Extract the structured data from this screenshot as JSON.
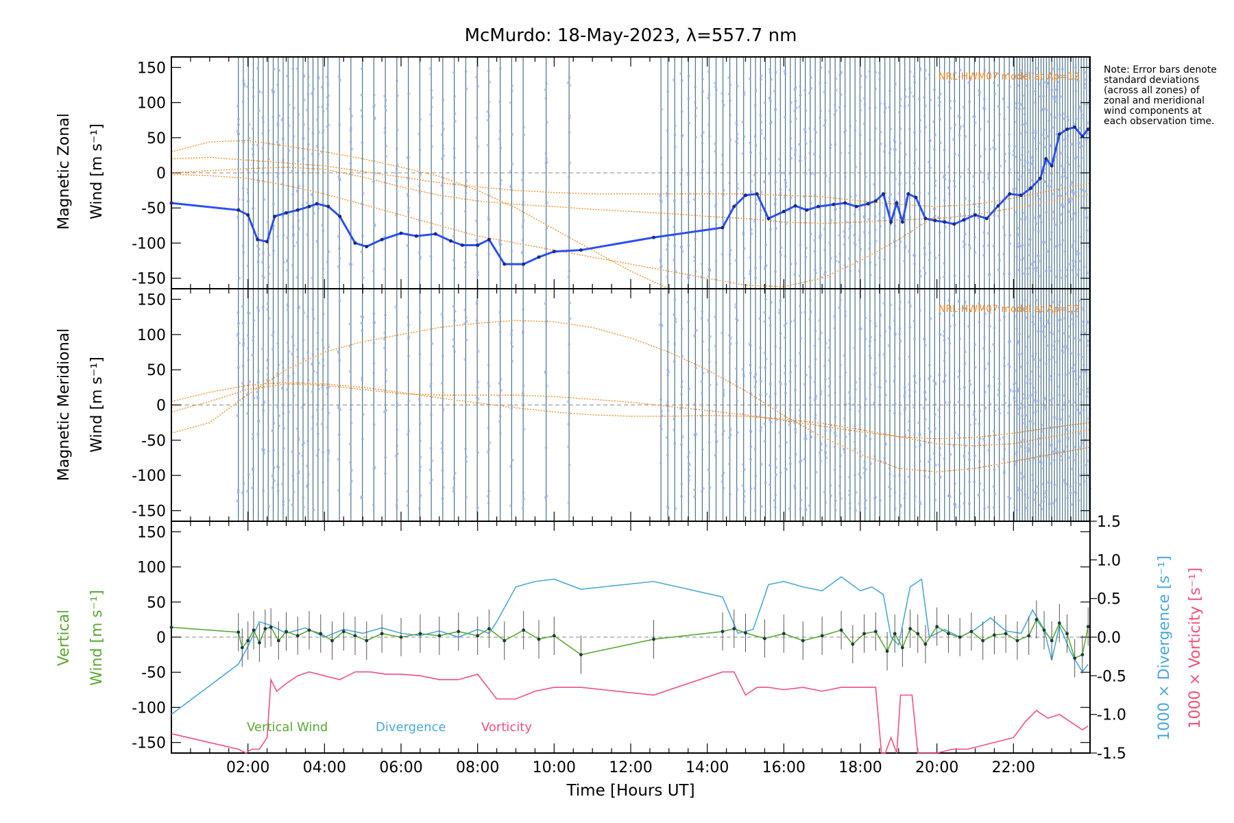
{
  "title": "McMurdo: 18-May-2023, λ=557.7 nm",
  "note": "Note: Error bars denote standard deviations (across all zones) of zonal and meridional wind components at each observation time.",
  "colors": {
    "zonal_line": "#2a4ff0",
    "model": "#f08a24",
    "vertical": "#5aa832",
    "divergence": "#4aa8d8",
    "vorticity": "#f0507a",
    "obs_lines": "#2c5870",
    "zone_points": "#8fa8e8"
  },
  "chart_data": [
    {
      "type": "line",
      "panel": "zonal",
      "ylabel_line1": "Magnetic Zonal",
      "ylabel_line2": "Wind",
      "ylabel_unit": "[m s⁻¹]",
      "ylim": [
        -165,
        165
      ],
      "yticks": [
        -150,
        -100,
        -50,
        0,
        50,
        100,
        150
      ],
      "xlim": [
        0,
        24
      ],
      "model_label": "NRL-HWM07 model at Ap=12",
      "series": [
        {
          "name": "Zonal wind",
          "x": [
            0.0,
            1.75,
            2.0,
            2.25,
            2.5,
            2.7,
            3.0,
            3.3,
            3.6,
            3.8,
            4.1,
            4.4,
            4.8,
            5.1,
            5.5,
            6.0,
            6.4,
            6.9,
            7.3,
            7.6,
            8.0,
            8.3,
            8.7,
            9.2,
            9.6,
            10.0,
            10.7,
            12.6,
            14.4,
            14.7,
            15.0,
            15.3,
            15.6,
            16.0,
            16.3,
            16.6,
            16.9,
            17.3,
            17.6,
            17.9,
            18.2,
            18.4,
            18.6,
            18.8,
            18.95,
            19.1,
            19.25,
            19.45,
            19.7,
            19.95,
            20.2,
            20.45,
            20.7,
            21.0,
            21.3,
            21.6,
            21.9,
            22.2,
            22.45,
            22.7,
            22.85,
            23.0,
            23.2,
            23.4,
            23.6,
            23.8,
            23.95
          ],
          "y": [
            -43,
            -53,
            -60,
            -95,
            -98,
            -62,
            -57,
            -53,
            -48,
            -44,
            -48,
            -62,
            -100,
            -105,
            -95,
            -86,
            -90,
            -87,
            -97,
            -103,
            -103,
            -95,
            -130,
            -130,
            -120,
            -112,
            -110,
            -92,
            -78,
            -48,
            -32,
            -30,
            -65,
            -55,
            -47,
            -53,
            -48,
            -45,
            -43,
            -48,
            -44,
            -40,
            -30,
            -70,
            -43,
            -70,
            -30,
            -35,
            -65,
            -68,
            -70,
            -73,
            -67,
            -60,
            -65,
            -47,
            -30,
            -32,
            -22,
            -8,
            20,
            10,
            55,
            62,
            65,
            52,
            62
          ]
        },
        {
          "name": "NRL-HWM07 model",
          "curves": [
            {
              "x": [
                0,
                1,
                2,
                3,
                4,
                5,
                6,
                7,
                8,
                9,
                10,
                11,
                12,
                13
              ],
              "y": [
                30,
                44,
                46,
                38,
                30,
                20,
                8,
                -5,
                -25,
                -50,
                -80,
                -110,
                -140,
                -165
              ]
            },
            {
              "x": [
                0,
                1,
                2,
                3,
                4,
                5,
                6,
                7,
                8,
                9,
                10,
                11,
                12,
                13,
                14,
                15,
                16,
                17,
                18,
                19,
                20,
                21,
                22,
                23,
                24
              ],
              "y": [
                20,
                22,
                18,
                14,
                10,
                2,
                -6,
                -14,
                -20,
                -25,
                -28,
                -30,
                -30,
                -30,
                -30,
                -30,
                -32,
                -34,
                -40,
                -45,
                -48,
                -45,
                -36,
                -25,
                -15
              ]
            },
            {
              "x": [
                0,
                1,
                2,
                3,
                4,
                5,
                6,
                7,
                8,
                9,
                10,
                11,
                12,
                13,
                14,
                15,
                16,
                17,
                18,
                19,
                20,
                21,
                22,
                23,
                24
              ],
              "y": [
                0,
                3,
                6,
                8,
                5,
                -6,
                -20,
                -32,
                -40,
                -45,
                -48,
                -52,
                -55,
                -58,
                -62,
                -65,
                -70,
                -72,
                -70,
                -67,
                -65,
                -60,
                -50,
                -40,
                -30
              ]
            },
            {
              "x": [
                0,
                1,
                2,
                3,
                4,
                5,
                6,
                7,
                8,
                9,
                10,
                11,
                12,
                13,
                14,
                15,
                16,
                17,
                18,
                19,
                20
              ],
              "y": [
                -2,
                -4,
                -8,
                -18,
                -30,
                -45,
                -60,
                -75,
                -90,
                -100,
                -110,
                -120,
                -130,
                -140,
                -150,
                -160,
                -162,
                -150,
                -125,
                -95,
                -60
              ]
            }
          ]
        }
      ]
    },
    {
      "type": "line",
      "panel": "meridional",
      "ylabel_line1": "Magnetic Meridional",
      "ylabel_line2": "Wind",
      "ylabel_unit": "[m s⁻¹]",
      "ylim": [
        -165,
        165
      ],
      "yticks": [
        -150,
        -100,
        -50,
        0,
        50,
        100,
        150
      ],
      "xlim": [
        0,
        24
      ],
      "model_label": "NRL-HWM07 model at Ap=12",
      "series": [
        {
          "name": "NRL-HWM07 model",
          "curves": [
            {
              "x": [
                0,
                1,
                2,
                3,
                4,
                5,
                6,
                7,
                8,
                9,
                10,
                11,
                12,
                13,
                14,
                15,
                16,
                17,
                18,
                19,
                20,
                21,
                22,
                23,
                24
              ],
              "y": [
                -40,
                -25,
                15,
                50,
                75,
                90,
                100,
                110,
                116,
                120,
                118,
                110,
                95,
                75,
                50,
                20,
                -15,
                -45,
                -70,
                -90,
                -95,
                -90,
                -80,
                -70,
                -60
              ]
            },
            {
              "x": [
                0,
                1,
                2,
                3,
                4,
                5,
                6,
                7,
                8,
                9,
                10,
                11,
                12,
                13,
                14,
                15,
                16,
                17,
                18,
                19,
                20,
                21,
                22,
                23,
                24
              ],
              "y": [
                -10,
                5,
                22,
                30,
                28,
                22,
                16,
                14,
                14,
                14,
                12,
                8,
                4,
                -2,
                -8,
                -14,
                -22,
                -30,
                -38,
                -45,
                -48,
                -46,
                -40,
                -32,
                -25
              ]
            },
            {
              "x": [
                0,
                1,
                2,
                3,
                4,
                5,
                6,
                7,
                8,
                9,
                10,
                11,
                12,
                13,
                14,
                15,
                16,
                17,
                18,
                19,
                20,
                21,
                22,
                23,
                24
              ],
              "y": [
                5,
                18,
                28,
                32,
                30,
                25,
                18,
                10,
                3,
                -4,
                -10,
                -14,
                -16,
                -16,
                -15,
                -16,
                -20,
                -26,
                -35,
                -45,
                -55,
                -58,
                -55,
                -45,
                -35
              ]
            }
          ]
        }
      ]
    },
    {
      "type": "line",
      "panel": "vertical",
      "ylabel_line1": "Vertical",
      "ylabel_line2": "Wind",
      "ylabel_unit": "[m s⁻¹]",
      "ylim": [
        -165,
        165
      ],
      "yticks": [
        -150,
        -100,
        -50,
        0,
        50,
        100,
        150
      ],
      "xlim": [
        0,
        24
      ],
      "xticks": [
        "02:00",
        "04:00",
        "06:00",
        "08:00",
        "10:00",
        "12:00",
        "14:00",
        "16:00",
        "18:00",
        "20:00",
        "22:00"
      ],
      "xlabel": "Time [Hours UT]",
      "y2label_divergence": "1000 × Divergence",
      "y2label_vorticity": "1000 × Vorticity",
      "y2label_unit": "[s⁻¹]",
      "y2lim": [
        -1.5,
        1.5
      ],
      "y2ticks": [
        "-1.5",
        "-1.0",
        "-0.5",
        "0.0",
        "0.5",
        "1.0",
        "1.5"
      ],
      "legend": [
        "Vertical Wind",
        "Divergence",
        "Vorticity"
      ],
      "series": [
        {
          "name": "Vertical Wind",
          "x": [
            0.0,
            1.75,
            1.85,
            2.0,
            2.15,
            2.3,
            2.45,
            2.6,
            2.8,
            3.0,
            3.3,
            3.6,
            3.9,
            4.2,
            4.5,
            4.8,
            5.1,
            5.5,
            6.0,
            6.5,
            7.0,
            7.5,
            8.0,
            8.3,
            8.7,
            9.2,
            9.6,
            10.0,
            10.7,
            12.6,
            14.4,
            14.7,
            15.0,
            15.5,
            16.0,
            16.5,
            17.0,
            17.5,
            17.8,
            18.1,
            18.4,
            18.7,
            18.9,
            19.1,
            19.3,
            19.5,
            19.7,
            20.0,
            20.3,
            20.6,
            20.9,
            21.2,
            21.5,
            21.8,
            22.1,
            22.4,
            22.6,
            22.8,
            23.0,
            23.2,
            23.4,
            23.6,
            23.8,
            23.95
          ],
          "y": [
            14,
            7,
            -15,
            -5,
            10,
            -8,
            12,
            14,
            -5,
            8,
            2,
            10,
            5,
            -5,
            8,
            2,
            -5,
            5,
            0,
            5,
            2,
            8,
            2,
            12,
            -5,
            10,
            -3,
            2,
            -25,
            -3,
            8,
            12,
            6,
            -2,
            5,
            -5,
            2,
            10,
            -10,
            5,
            8,
            -20,
            5,
            -15,
            12,
            5,
            -10,
            15,
            5,
            0,
            8,
            -5,
            3,
            5,
            -5,
            2,
            25,
            10,
            -5,
            20,
            5,
            -30,
            -25,
            15
          ]
        },
        {
          "name": "Divergence",
          "x": [
            0.0,
            1.75,
            2.0,
            2.3,
            2.6,
            3.0,
            3.5,
            4.0,
            4.5,
            5.0,
            5.5,
            6.0,
            6.5,
            7.0,
            7.5,
            8.0,
            8.3,
            8.5,
            9.0,
            9.5,
            10.0,
            10.7,
            12.6,
            14.4,
            14.8,
            15.2,
            15.6,
            16.0,
            16.5,
            17.0,
            17.5,
            18.0,
            18.3,
            18.6,
            18.8,
            19.0,
            19.3,
            19.6,
            19.8,
            20.2,
            20.6,
            21.0,
            21.4,
            21.8,
            22.2,
            22.5,
            22.8,
            23.0,
            23.2,
            23.5,
            23.8,
            23.95
          ],
          "y": [
            -1.0,
            -0.35,
            -0.12,
            0.2,
            0.15,
            0.05,
            0.12,
            0.0,
            0.1,
            0.05,
            0.12,
            0.05,
            0.02,
            0.08,
            0.0,
            0.1,
            0.05,
            0.2,
            0.65,
            0.72,
            0.75,
            0.62,
            0.72,
            0.52,
            0.05,
            0.1,
            0.68,
            0.72,
            0.65,
            0.6,
            0.78,
            0.6,
            0.65,
            0.55,
            0.0,
            -0.1,
            0.65,
            0.75,
            0.0,
            0.1,
            0.0,
            0.1,
            0.25,
            0.08,
            0.05,
            0.35,
            0.1,
            -0.3,
            0.15,
            -0.2,
            -0.45,
            -0.35
          ]
        },
        {
          "name": "Vorticity",
          "x": [
            0.0,
            1.75,
            1.95,
            2.1,
            2.3,
            2.5,
            2.6,
            2.75,
            3.0,
            3.3,
            3.6,
            4.0,
            4.4,
            4.8,
            5.2,
            5.6,
            6.0,
            6.5,
            7.0,
            7.5,
            8.0,
            8.5,
            9.0,
            9.5,
            10.0,
            10.7,
            12.6,
            14.4,
            14.7,
            15.0,
            15.3,
            15.6,
            16.0,
            16.5,
            17.0,
            17.5,
            18.0,
            18.4,
            18.55,
            18.65,
            18.8,
            18.95,
            19.05,
            19.2,
            19.35,
            19.5,
            19.6,
            20.0,
            20.4,
            20.8,
            21.2,
            21.6,
            22.0,
            22.3,
            22.6,
            22.9,
            23.2,
            23.5,
            23.8,
            23.95
          ],
          "y": [
            -1.25,
            -1.45,
            -1.5,
            -1.45,
            -1.45,
            -1.3,
            -0.55,
            -0.7,
            -0.6,
            -0.5,
            -0.45,
            -0.5,
            -0.55,
            -0.45,
            -0.45,
            -0.48,
            -0.48,
            -0.5,
            -0.55,
            -0.55,
            -0.48,
            -0.8,
            -0.8,
            -0.7,
            -0.65,
            -0.65,
            -0.75,
            -0.45,
            -0.45,
            -0.75,
            -0.65,
            -0.65,
            -0.68,
            -0.65,
            -0.7,
            -0.65,
            -0.65,
            -0.65,
            -1.5,
            -1.5,
            -1.3,
            -1.5,
            -0.75,
            -0.75,
            -0.75,
            -1.5,
            -1.5,
            -1.5,
            -1.45,
            -1.45,
            -1.4,
            -1.35,
            -1.3,
            -1.1,
            -0.95,
            -1.05,
            -1.0,
            -1.1,
            -1.2,
            -1.15
          ]
        }
      ]
    }
  ]
}
